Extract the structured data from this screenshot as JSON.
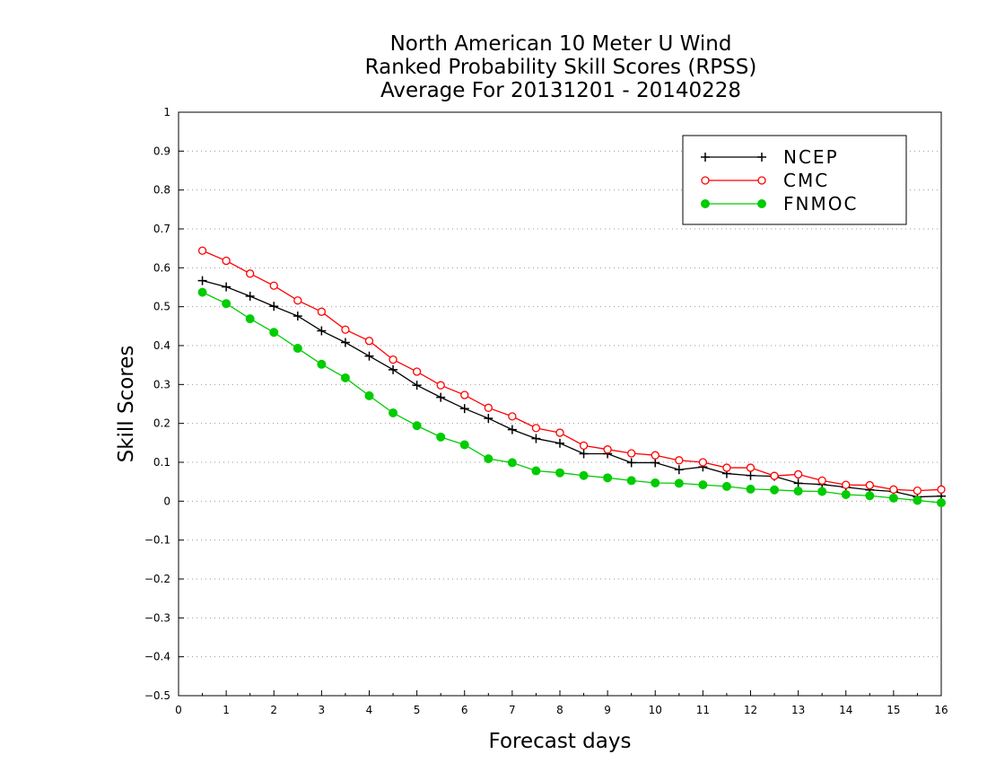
{
  "chart_data": {
    "type": "line",
    "title": [
      "North American 10 Meter U Wind",
      "Ranked Probability Skill Scores (RPSS)",
      "Average For 20131201 - 20140228"
    ],
    "xlabel": "Forecast days",
    "ylabel": "Skill Scores",
    "xlim": [
      0,
      16
    ],
    "ylim": [
      -0.5,
      1
    ],
    "xticks": [
      "0",
      "1",
      "2",
      "3",
      "4",
      "5",
      "6",
      "7",
      "8",
      "9",
      "10",
      "11",
      "12",
      "13",
      "14",
      "15",
      "16"
    ],
    "yticks": [
      "−0.5",
      "−0.4",
      "−0.3",
      "−0.2",
      "−0.1",
      "0",
      "0.1",
      "0.2",
      "0.3",
      "0.4",
      "0.5",
      "0.6",
      "0.7",
      "0.8",
      "0.9",
      "1"
    ],
    "grid": "horizontal dotted",
    "legend_position": "top-right",
    "x": [
      0.5,
      1,
      1.5,
      2,
      2.5,
      3,
      3.5,
      4,
      4.5,
      5,
      5.5,
      6,
      6.5,
      7,
      7.5,
      8,
      8.5,
      9,
      9.5,
      10,
      10.5,
      11,
      11.5,
      12,
      12.5,
      13,
      13.5,
      14,
      14.5,
      15,
      15.5,
      16
    ],
    "series": [
      {
        "name": "NCEP",
        "color": "#000000",
        "marker": "plus",
        "values": [
          0.567,
          0.551,
          0.527,
          0.501,
          0.476,
          0.438,
          0.408,
          0.373,
          0.338,
          0.298,
          0.267,
          0.238,
          0.213,
          0.184,
          0.161,
          0.149,
          0.122,
          0.122,
          0.099,
          0.099,
          0.081,
          0.088,
          0.071,
          0.066,
          0.064,
          0.046,
          0.043,
          0.036,
          0.029,
          0.025,
          0.011,
          0.013
        ]
      },
      {
        "name": "CMC",
        "color": "#ff0000",
        "marker": "open-circle",
        "values": [
          0.644,
          0.618,
          0.585,
          0.554,
          0.516,
          0.487,
          0.441,
          0.412,
          0.364,
          0.333,
          0.298,
          0.273,
          0.24,
          0.218,
          0.188,
          0.176,
          0.143,
          0.133,
          0.123,
          0.118,
          0.105,
          0.1,
          0.086,
          0.086,
          0.065,
          0.069,
          0.053,
          0.042,
          0.041,
          0.03,
          0.027,
          0.03
        ]
      },
      {
        "name": "FNMOC",
        "color": "#00cc00",
        "marker": "filled-circle",
        "values": [
          0.537,
          0.508,
          0.469,
          0.434,
          0.393,
          0.352,
          0.317,
          0.271,
          0.227,
          0.194,
          0.165,
          0.145,
          0.109,
          0.099,
          0.078,
          0.073,
          0.066,
          0.06,
          0.053,
          0.047,
          0.046,
          0.042,
          0.038,
          0.031,
          0.029,
          0.026,
          0.025,
          0.017,
          0.014,
          0.008,
          0.002,
          -0.004
        ]
      }
    ]
  }
}
